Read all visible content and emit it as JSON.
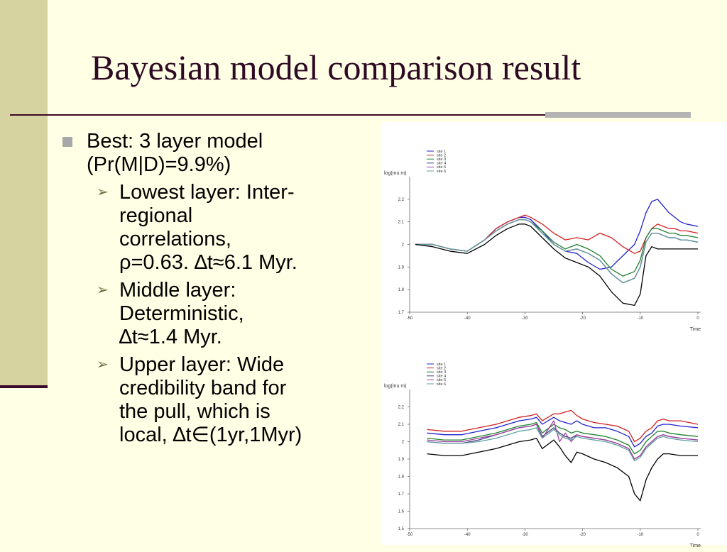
{
  "slide": {
    "title": "Bayesian model comparison result",
    "bullet_main": [
      "Best:  3 layer model",
      "(Pr(M|D)=9.9%)"
    ],
    "sub_bullets": [
      [
        "Lowest layer: Inter-",
        "regional",
        "correlations,",
        "ρ=0.63. ∆t≈6.1 Myr."
      ],
      [
        "Middle layer:",
        "Deterministic,",
        "∆t≈1.4 Myr."
      ],
      [
        "Upper layer: Wide",
        "credibility band for",
        "the pull, which is",
        "local, ∆t∈(1yr,1Myr)"
      ]
    ]
  },
  "chart_data": [
    {
      "type": "line",
      "ylabel": "log(mu m)",
      "xlabel": "Time",
      "xlim": [
        -50,
        0
      ],
      "ylim": [
        1.7,
        2.3
      ],
      "xticks": [
        "-50",
        "-40",
        "-30",
        "-20",
        "-10",
        "0"
      ],
      "yticks": [
        "1.7",
        "1.8",
        "1.9",
        "2",
        "2.1",
        "2.2"
      ],
      "legend": [
        "site 1",
        "site 2",
        "site 3",
        "site 4",
        "site 5",
        "site 6"
      ],
      "legend_position": "top-left",
      "grid": false,
      "colors": [
        "#2020d0",
        "#d02020",
        "#208030",
        "#404080",
        "#a040a0",
        "#60a0a0",
        "#000000"
      ],
      "x": [
        -49,
        -46,
        -43,
        -40,
        -37,
        -35,
        -33,
        -31,
        -30,
        -29,
        -27,
        -25,
        -23,
        -21,
        -19,
        -17,
        -15,
        -13,
        -11,
        -10,
        -9,
        -8,
        -7,
        -6,
        -5,
        -4,
        -3,
        -2,
        0
      ],
      "series": [
        {
          "name": "site 1",
          "values": [
            2.0,
            2.0,
            1.98,
            1.97,
            2.02,
            2.07,
            2.1,
            2.12,
            2.12,
            2.11,
            2.06,
            2.0,
            1.97,
            1.96,
            1.92,
            1.89,
            1.9,
            1.95,
            2.0,
            2.06,
            2.14,
            2.19,
            2.2,
            2.17,
            2.14,
            2.12,
            2.1,
            2.09,
            2.08
          ]
        },
        {
          "name": "site 2",
          "values": [
            2.0,
            2.0,
            1.98,
            1.97,
            2.02,
            2.07,
            2.1,
            2.12,
            2.13,
            2.12,
            2.09,
            2.05,
            2.02,
            2.03,
            2.02,
            2.05,
            2.03,
            1.99,
            1.96,
            1.97,
            2.03,
            2.07,
            2.09,
            2.08,
            2.07,
            2.07,
            2.06,
            2.06,
            2.05
          ]
        },
        {
          "name": "site 3",
          "values": [
            2.0,
            2.0,
            1.98,
            1.97,
            2.02,
            2.06,
            2.09,
            2.11,
            2.11,
            2.1,
            2.06,
            2.01,
            1.98,
            2.0,
            1.98,
            1.95,
            1.89,
            1.86,
            1.88,
            1.93,
            2.03,
            2.07,
            2.07,
            2.06,
            2.05,
            2.05,
            2.04,
            2.04,
            2.03
          ]
        },
        {
          "name": "site 4",
          "values": [
            2.0,
            2.0,
            1.98,
            1.97,
            2.02,
            2.06,
            2.09,
            2.11,
            2.11,
            2.1,
            2.05,
            2.0,
            1.97,
            1.98,
            1.96,
            1.93,
            1.87,
            1.83,
            1.85,
            1.9,
            2.01,
            2.05,
            2.05,
            2.04,
            2.03,
            2.03,
            2.02,
            2.02,
            2.01
          ]
        },
        {
          "name": "site 5",
          "values": [
            2.0,
            2.0,
            1.98,
            1.97,
            2.02,
            2.06,
            2.09,
            2.11,
            2.11,
            2.1,
            2.05,
            2.0,
            1.97,
            1.98,
            1.96,
            1.93,
            1.87,
            1.83,
            1.85,
            1.9,
            2.01,
            2.05,
            2.05,
            2.04,
            2.03,
            2.03,
            2.02,
            2.02,
            2.01
          ]
        },
        {
          "name": "site 6",
          "values": [
            2.0,
            2.0,
            1.98,
            1.97,
            2.02,
            2.06,
            2.09,
            2.11,
            2.11,
            2.1,
            2.05,
            2.0,
            1.97,
            1.98,
            1.96,
            1.93,
            1.87,
            1.83,
            1.85,
            1.9,
            2.01,
            2.05,
            2.05,
            2.04,
            2.03,
            2.03,
            2.02,
            2.02,
            2.01
          ]
        },
        {
          "name": "",
          "values": [
            2.0,
            1.99,
            1.97,
            1.96,
            2.0,
            2.04,
            2.07,
            2.09,
            2.09,
            2.08,
            2.03,
            1.98,
            1.94,
            1.92,
            1.9,
            1.86,
            1.79,
            1.74,
            1.73,
            1.78,
            1.95,
            1.99,
            1.98,
            1.98,
            1.98,
            1.98,
            1.98,
            1.98,
            1.98
          ]
        }
      ]
    },
    {
      "type": "line",
      "ylabel": "log(mu m)",
      "xlabel": "Time",
      "xlim": [
        -50,
        0
      ],
      "ylim": [
        1.5,
        2.3
      ],
      "xticks": [
        "-50",
        "-40",
        "-30",
        "-20",
        "-10",
        "0"
      ],
      "yticks": [
        "1.5",
        "1.6",
        "1.7",
        "1.8",
        "1.9",
        "2",
        "2.1",
        "2.2"
      ],
      "legend": [
        "site 1",
        "site 2",
        "site 3",
        "site 4",
        "site 5",
        "site 6"
      ],
      "legend_position": "top-left",
      "grid": false,
      "colors": [
        "#2020d0",
        "#d02020",
        "#208030",
        "#404080",
        "#a040a0",
        "#60a0a0",
        "#000000"
      ],
      "x": [
        -47,
        -44,
        -41,
        -38,
        -35,
        -33,
        -31,
        -29,
        -28,
        -27,
        -25,
        -24,
        -23,
        -22,
        -21,
        -20,
        -18,
        -16,
        -14,
        -12,
        -11,
        -10,
        -9,
        -8,
        -7,
        -6,
        -5,
        -3,
        0
      ],
      "series": [
        {
          "name": "site 1",
          "values": [
            2.05,
            2.04,
            2.04,
            2.06,
            2.08,
            2.1,
            2.12,
            2.13,
            2.14,
            2.1,
            2.14,
            2.12,
            2.11,
            2.1,
            2.12,
            2.1,
            2.08,
            2.08,
            2.06,
            2.03,
            1.97,
            1.99,
            2.03,
            2.05,
            2.09,
            2.1,
            2.1,
            2.09,
            2.08
          ]
        },
        {
          "name": "site 2",
          "values": [
            2.07,
            2.06,
            2.06,
            2.08,
            2.1,
            2.12,
            2.14,
            2.15,
            2.16,
            2.12,
            2.16,
            2.16,
            2.17,
            2.18,
            2.15,
            2.13,
            2.11,
            2.1,
            2.09,
            2.06,
            2.0,
            2.02,
            2.06,
            2.08,
            2.12,
            2.13,
            2.12,
            2.12,
            2.1
          ]
        },
        {
          "name": "site 3",
          "values": [
            2.02,
            2.01,
            2.01,
            2.03,
            2.05,
            2.07,
            2.09,
            2.1,
            2.11,
            2.05,
            2.1,
            2.08,
            2.07,
            2.05,
            2.06,
            2.05,
            2.04,
            2.03,
            2.01,
            1.98,
            1.93,
            1.95,
            2.0,
            2.03,
            2.06,
            2.06,
            2.05,
            2.04,
            2.03
          ]
        },
        {
          "name": "site 4",
          "values": [
            2.0,
            1.99,
            1.99,
            2.01,
            2.04,
            2.06,
            2.08,
            2.09,
            2.1,
            2.03,
            2.08,
            2.05,
            2.03,
            2.02,
            2.04,
            2.03,
            2.02,
            2.01,
            1.99,
            1.96,
            1.9,
            1.92,
            1.97,
            2.0,
            2.03,
            2.04,
            2.03,
            2.02,
            2.01
          ]
        },
        {
          "name": "site 5",
          "values": [
            2.01,
            2.0,
            2.0,
            2.02,
            2.04,
            2.06,
            2.08,
            2.09,
            2.1,
            2.02,
            2.12,
            2.0,
            2.05,
            2.0,
            2.04,
            2.03,
            2.02,
            2.01,
            1.99,
            1.96,
            1.9,
            1.92,
            1.97,
            2.0,
            2.03,
            2.04,
            2.03,
            2.02,
            2.01
          ]
        },
        {
          "name": "site 6",
          "values": [
            2.0,
            1.99,
            1.99,
            2.0,
            2.02,
            2.04,
            2.06,
            2.07,
            2.08,
            2.02,
            2.07,
            2.04,
            2.02,
            2.01,
            2.03,
            2.02,
            2.01,
            2.0,
            1.98,
            1.95,
            1.89,
            1.91,
            1.96,
            1.99,
            2.02,
            2.03,
            2.02,
            2.01,
            2.0
          ]
        },
        {
          "name": "",
          "values": [
            1.93,
            1.92,
            1.92,
            1.94,
            1.96,
            1.98,
            2.0,
            2.01,
            2.02,
            1.96,
            2.01,
            1.97,
            1.92,
            1.88,
            1.94,
            1.93,
            1.9,
            1.88,
            1.85,
            1.8,
            1.7,
            1.66,
            1.78,
            1.85,
            1.9,
            1.93,
            1.93,
            1.92,
            1.92
          ]
        }
      ]
    }
  ]
}
